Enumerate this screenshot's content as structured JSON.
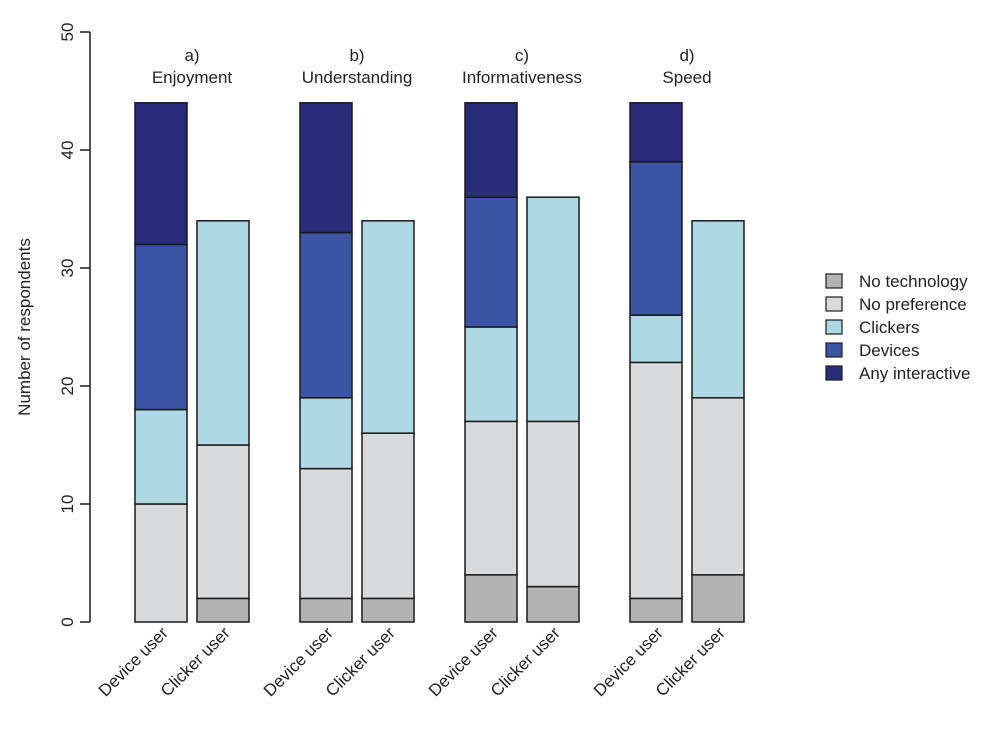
{
  "chart_data": {
    "type": "bar",
    "stacked": true,
    "ylabel": "Number of respondents",
    "xlabel": "",
    "ylim": [
      0,
      50
    ],
    "yticks": [
      0,
      10,
      20,
      30,
      40,
      50
    ],
    "legend_position": "right",
    "series": [
      {
        "name": "No technology",
        "color": "#b3b3b3"
      },
      {
        "name": "No preference",
        "color": "#d9dadc"
      },
      {
        "name": "Clickers",
        "color": "#aed8e3"
      },
      {
        "name": "Devices",
        "color": "#3b54a4"
      },
      {
        "name": "Any interactive",
        "color": "#2a2d7c"
      }
    ],
    "legend_order": [
      "No technology",
      "No preference",
      "Clickers",
      "Devices",
      "Any interactive"
    ],
    "panels": [
      {
        "letter": "a)",
        "title": "Enjoyment",
        "bars": [
          {
            "label": "Device user",
            "values": [
              0,
              10,
              8,
              14,
              12
            ]
          },
          {
            "label": "Clicker user",
            "values": [
              2,
              13,
              19,
              0,
              0
            ]
          }
        ]
      },
      {
        "letter": "b)",
        "title": "Understanding",
        "bars": [
          {
            "label": "Device user",
            "values": [
              2,
              11,
              6,
              14,
              11
            ]
          },
          {
            "label": "Clicker user",
            "values": [
              2,
              14,
              18,
              0,
              0
            ]
          }
        ]
      },
      {
        "letter": "c)",
        "title": "Informativeness",
        "bars": [
          {
            "label": "Device user",
            "values": [
              4,
              13,
              8,
              11,
              8
            ]
          },
          {
            "label": "Clicker user",
            "values": [
              3,
              14,
              19,
              0,
              0
            ]
          }
        ]
      },
      {
        "letter": "d)",
        "title": "Speed",
        "bars": [
          {
            "label": "Device user",
            "values": [
              2,
              20,
              4,
              13,
              5
            ]
          },
          {
            "label": "Clicker user",
            "values": [
              4,
              15,
              15,
              0,
              0
            ]
          }
        ]
      }
    ]
  }
}
